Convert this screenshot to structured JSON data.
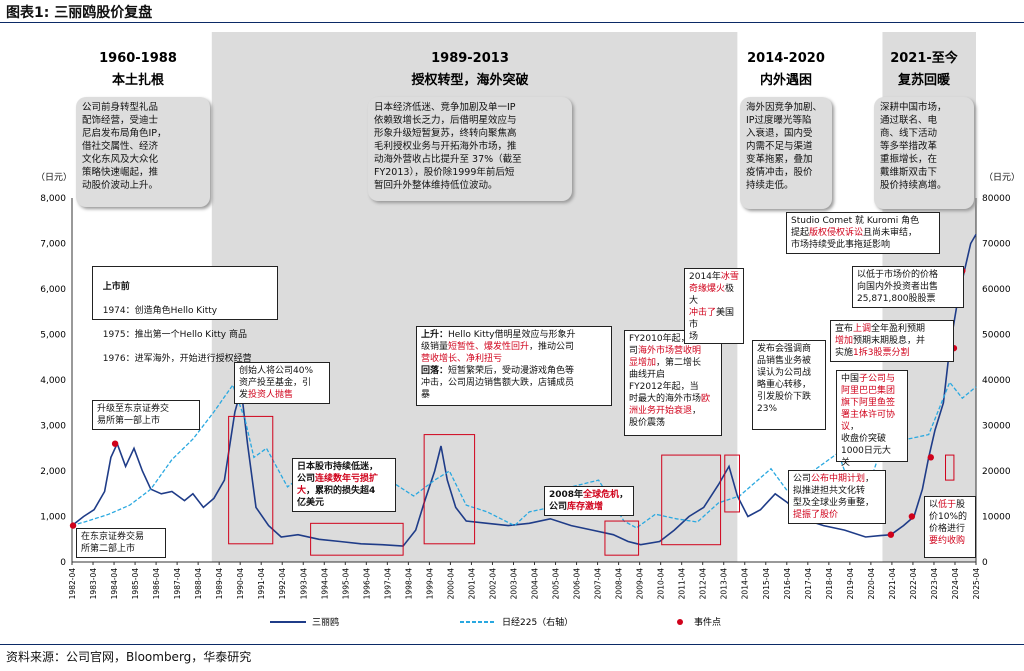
{
  "figure_title": "图表1:  三丽鸥股价复盘",
  "source_note": "资料来源：公司官网，Bloomberg，华泰研究",
  "left_unit": "（日元）",
  "right_unit": "（日元）",
  "chart_data": {
    "type": "line",
    "left_axis": {
      "min": 0,
      "max": 8000,
      "ticks": [
        "0",
        "1,000",
        "2,000",
        "3,000",
        "4,000",
        "5,000",
        "6,000",
        "7,000",
        "8,000"
      ]
    },
    "right_axis": {
      "min": 0,
      "max": 80000,
      "ticks": [
        "0",
        "10000",
        "20000",
        "30000",
        "40000",
        "50000",
        "60000",
        "70000",
        "80000"
      ]
    },
    "x_range": [
      1982.25,
      2025.25
    ],
    "x_tick_labels": [
      "1982-04",
      "1983-04",
      "1984-04",
      "1985-04",
      "1986-04",
      "1987-04",
      "1988-04",
      "1989-04",
      "1990-04",
      "1991-04",
      "1992-04",
      "1993-04",
      "1994-04",
      "1995-04",
      "1996-04",
      "1997-04",
      "1998-04",
      "1999-04",
      "2000-04",
      "2001-04",
      "2002-04",
      "2003-04",
      "2004-04",
      "2005-04",
      "2006-04",
      "2007-04",
      "2008-04",
      "2009-04",
      "2010-04",
      "2011-04",
      "2012-04",
      "2013-04",
      "2014-04",
      "2015-04",
      "2016-04",
      "2017-04",
      "2018-04",
      "2019-04",
      "2020-04",
      "2021-04",
      "2022-04",
      "2023-04",
      "2024-04",
      "2025-04"
    ],
    "series": [
      {
        "name": "三丽鸥",
        "axis": "left",
        "color": "#1f3c88",
        "points": [
          [
            1982.25,
            800
          ],
          [
            1982.8,
            1000
          ],
          [
            1983.3,
            1150
          ],
          [
            1983.8,
            1550
          ],
          [
            1984.1,
            2300
          ],
          [
            1984.4,
            2600
          ],
          [
            1984.8,
            2100
          ],
          [
            1985.2,
            2500
          ],
          [
            1985.6,
            2000
          ],
          [
            1986.0,
            1600
          ],
          [
            1986.5,
            1500
          ],
          [
            1987.0,
            1550
          ],
          [
            1987.6,
            1350
          ],
          [
            1988.0,
            1500
          ],
          [
            1988.5,
            1200
          ],
          [
            1989.0,
            1400
          ],
          [
            1989.5,
            1800
          ],
          [
            1990.0,
            3300
          ],
          [
            1990.3,
            3800
          ],
          [
            1990.6,
            2600
          ],
          [
            1991.0,
            1200
          ],
          [
            1991.6,
            800
          ],
          [
            1992.2,
            550
          ],
          [
            1993.0,
            600
          ],
          [
            1994.0,
            500
          ],
          [
            1995.0,
            450
          ],
          [
            1996.0,
            400
          ],
          [
            1997.0,
            380
          ],
          [
            1998.0,
            350
          ],
          [
            1998.6,
            700
          ],
          [
            1999.0,
            1300
          ],
          [
            1999.5,
            2000
          ],
          [
            1999.8,
            2550
          ],
          [
            2000.1,
            1800
          ],
          [
            2000.5,
            1200
          ],
          [
            2001.0,
            900
          ],
          [
            2002.0,
            850
          ],
          [
            2003.0,
            800
          ],
          [
            2004.0,
            850
          ],
          [
            2005.0,
            950
          ],
          [
            2006.0,
            800
          ],
          [
            2007.0,
            700
          ],
          [
            2008.0,
            600
          ],
          [
            2008.7,
            450
          ],
          [
            2009.3,
            380
          ],
          [
            2010.2,
            450
          ],
          [
            2010.9,
            700
          ],
          [
            2011.6,
            1000
          ],
          [
            2012.3,
            1200
          ],
          [
            2013.0,
            1700
          ],
          [
            2013.5,
            2100
          ],
          [
            2013.9,
            1450
          ],
          [
            2014.4,
            1000
          ],
          [
            2015.0,
            1150
          ],
          [
            2015.7,
            1500
          ],
          [
            2016.3,
            1300
          ],
          [
            2017.0,
            950
          ],
          [
            2018.0,
            800
          ],
          [
            2019.0,
            700
          ],
          [
            2020.0,
            550
          ],
          [
            2020.7,
            580
          ],
          [
            2021.2,
            600
          ],
          [
            2021.8,
            800
          ],
          [
            2022.3,
            1000
          ],
          [
            2022.7,
            1600
          ],
          [
            2023.0,
            2300
          ],
          [
            2023.3,
            2900
          ],
          [
            2023.7,
            3500
          ],
          [
            2024.0,
            4700
          ],
          [
            2024.4,
            5800
          ],
          [
            2024.7,
            6400
          ],
          [
            2025.0,
            7000
          ],
          [
            2025.25,
            7200
          ]
        ]
      },
      {
        "name": "日经225（右轴）",
        "axis": "right",
        "color": "#29a8e0",
        "points": [
          [
            1982.25,
            8000
          ],
          [
            1983.0,
            9000
          ],
          [
            1984.0,
            10500
          ],
          [
            1985.0,
            12500
          ],
          [
            1986.0,
            16000
          ],
          [
            1987.0,
            22500
          ],
          [
            1988.0,
            27000
          ],
          [
            1989.0,
            33000
          ],
          [
            1989.9,
            38900
          ],
          [
            1990.5,
            31000
          ],
          [
            1990.9,
            23000
          ],
          [
            1991.5,
            25000
          ],
          [
            1992.5,
            16500
          ],
          [
            1993.5,
            20000
          ],
          [
            1994.5,
            20500
          ],
          [
            1995.5,
            15000
          ],
          [
            1996.5,
            21500
          ],
          [
            1997.5,
            17500
          ],
          [
            1998.5,
            14500
          ],
          [
            1999.5,
            18000
          ],
          [
            2000.2,
            20000
          ],
          [
            2001.0,
            12500
          ],
          [
            2002.0,
            11000
          ],
          [
            2003.3,
            8000
          ],
          [
            2004.0,
            11000
          ],
          [
            2005.0,
            12000
          ],
          [
            2006.0,
            16500
          ],
          [
            2007.3,
            18000
          ],
          [
            2008.5,
            9000
          ],
          [
            2009.1,
            7500
          ],
          [
            2010.0,
            10500
          ],
          [
            2011.0,
            9500
          ],
          [
            2012.0,
            8800
          ],
          [
            2013.0,
            13000
          ],
          [
            2014.0,
            14500
          ],
          [
            2015.5,
            20500
          ],
          [
            2016.3,
            15500
          ],
          [
            2017.5,
            20000
          ],
          [
            2018.7,
            24000
          ],
          [
            2019.0,
            20000
          ],
          [
            2020.2,
            17500
          ],
          [
            2021.0,
            28500
          ],
          [
            2022.0,
            27000
          ],
          [
            2023.0,
            28000
          ],
          [
            2024.0,
            39500
          ],
          [
            2024.6,
            36000
          ],
          [
            2025.25,
            38500
          ]
        ]
      }
    ],
    "event_points": [
      [
        1982.3,
        800
      ],
      [
        1984.3,
        2600
      ],
      [
        2021.2,
        600
      ],
      [
        2022.2,
        1000
      ],
      [
        2023.1,
        2300
      ],
      [
        2024.2,
        4700
      ],
      [
        2024.6,
        6400
      ]
    ],
    "legend": [
      "三丽鸥",
      "日经225（右轴）",
      "事件点"
    ]
  },
  "phases": [
    {
      "title": "1960-1988",
      "subtitle": "本土扎根",
      "desc": "公司前身转型礼品\n配饰经营，受迪士\n尼启发布局角色IP，\n借社交属性、经济\n文化东风及大众化\n策略快速崛起，推\n动股价波动上升。"
    },
    {
      "title": "1989-2013",
      "subtitle": "授权转型，海外突破",
      "desc": "日本经济低迷、竞争加剧及单一IP\n依赖致增长乏力，后借明星效应与\n形象升级短暂复苏，终转向聚焦高\n毛利授权业务与开拓海外市场，推\n动海外营收占比提升至 37%（截至\nFY2013），股价除1999年前后短\n暂回升外整体维持低位波动。"
    },
    {
      "title": "2014-2020",
      "subtitle": "内外遇困",
      "desc": "海外因竞争加剧、\nIP过度曝光等陷\n入衰退，国内受\n内需不足与渠道\n变革拖累，叠加\n疫情冲击，股价\n持续走低。"
    },
    {
      "title": "2021-至今",
      "subtitle": "复苏回暖",
      "desc": "深耕中国市场，\n通过联名、电\n商、线下活动\n等多举措改革\n重振增长，在\n戴维斯双击下\n股价持续高增。"
    }
  ],
  "annotations": {
    "a1_title": "上市前",
    "a1_lines": [
      "1974：创造角色Hello Kitty",
      "1975：推出第一个Hello Kitty 商品",
      "1976：进军海外，开始进行授权经营"
    ],
    "a2": "升级至东京证券交\n易所第一部上市",
    "a3": "在东京证券交易\n所第二部上市",
    "a4_pre": "创始人将公司40%\n资产投至基金，引\n发",
    "a4_red": "投资人抛售",
    "a5_title": "日本股市持续低迷，",
    "a5_pre": "公司",
    "a5_red": "连续数年亏损扩大",
    "a5_post": "，累积的损失超4\n亿美元",
    "a6_title": "上升：",
    "a6_pre": "Hello Kitty借明星效应与形象升\n级销量",
    "a6_red1": "短暂性、爆发性回升",
    "a6_mid": "，推动公司\n",
    "a6_red2": "营收增长、净利扭亏",
    "a6_title2": "回落：",
    "a6_post": "短暂繁荣后，受动漫游戏角色等\n冲击，公司周边销售额大跌，店铺成员\n暴",
    "a7_pre": "2008年",
    "a7_red": "全球危机",
    "a7_post": "，\n公司",
    "a7_red2": "库存激增",
    "a8_pre": "FY2010年起，公\n司",
    "a8_red": "海外市场营收明\n显增加",
    "a8_post": "，第二增长\n曲线开启\nFY2012年起，当\n时最大的海外市场",
    "a8_red2": "欧洲业务开始衰退",
    "a8_post2": "，\n股价震荡",
    "a9_pre": "2014年",
    "a9_red": "冰雪\n奇缘爆火",
    "a9_post": "极大\n",
    "a9_red2": "冲击了",
    "a9_post2": "美国市\n场",
    "a10": "发布会强调商\n品销售业务被\n误认为公司战\n略重心转移，\n引发股价下跌\n23%",
    "a11_pre": "公司",
    "a11_red": "公布中期计划",
    "a11_mid": "，\n拟推进担共文化转\n型及全球业务重整，\n",
    "a11_red2": "提振了股价",
    "a12_pre": "中国",
    "a12_red": "子公司与\n阿里巴巴集团\n旗下阿里鱼签\n署主体许可协议",
    "a12_post": "，\n收盘价突破\n1000日元大\n关",
    "a13_pre": "以",
    "a13_red": "低于",
    "a13_mid": "股\n价10%的\n价格进行\n",
    "a13_red2": "要约收购",
    "a14_pre": "宣布",
    "a14_red": "上调",
    "a14_mid": "全年盈利预期\n",
    "a14_red2": "增加",
    "a14_mid2": "预期末期股息，并\n实施",
    "a14_red3": "1拆3股票分割",
    "a15": "以低于市场价的价格\n向国内外投资者出售\n25,871,800股股票",
    "a16_pre": "Studio Comet 就 Kuromi 角色\n提起",
    "a16_red": "版权侵权诉讼",
    "a16_post": "且尚未审结，\n市场持续受此事拖延影响"
  }
}
